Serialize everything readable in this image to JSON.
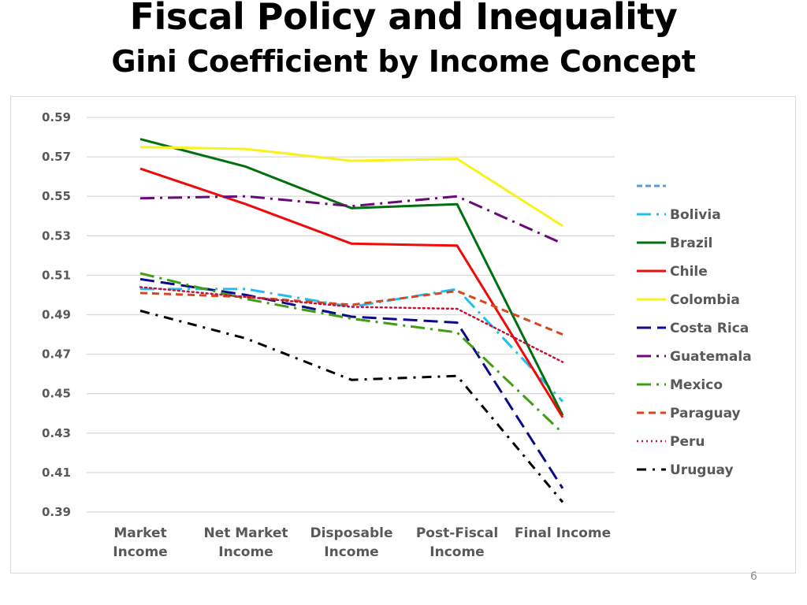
{
  "slide": {
    "title": "Fiscal Policy and Inequality",
    "subtitle": "Gini Coefficient by Income Concept",
    "page_number": "6"
  },
  "chart_data": {
    "type": "line",
    "title": "Gini Coefficient by Income Concept",
    "xlabel": "",
    "ylabel": "",
    "categories": [
      "Market Income",
      "Net Market Income",
      "Disposable Income",
      "Post-Fiscal Income",
      "Final Income"
    ],
    "category_lines": [
      [
        "Market",
        "Income"
      ],
      [
        "Net Market",
        "Income"
      ],
      [
        "Disposable",
        "Income"
      ],
      [
        "Post-Fiscal",
        "Income"
      ],
      [
        "Final Income"
      ]
    ],
    "ylim": [
      0.39,
      0.59
    ],
    "yticks": [
      "0.59",
      "0.57",
      "0.55",
      "0.53",
      "0.51",
      "0.49",
      "0.47",
      "0.45",
      "0.43",
      "0.41",
      "0.39"
    ],
    "ytick_values": [
      0.59,
      0.57,
      0.55,
      0.53,
      0.51,
      0.49,
      0.47,
      0.45,
      0.43,
      0.41,
      0.39
    ],
    "grid": true,
    "legend_position": "right",
    "legend_blank_entry": {
      "name": "",
      "color": "#5b9bd5",
      "dash": "short-dash"
    },
    "series": [
      {
        "name": "Bolivia",
        "color": "#1fbff0",
        "dash": "long-dash-dot",
        "values": [
          0.503,
          0.503,
          0.494,
          0.503,
          0.446
        ]
      },
      {
        "name": "Brazil",
        "color": "#00700f",
        "dash": "solid",
        "values": [
          0.579,
          0.565,
          0.544,
          0.546,
          0.439
        ]
      },
      {
        "name": "Chile",
        "color": "#f00a0a",
        "dash": "solid",
        "values": [
          0.564,
          0.546,
          0.526,
          0.525,
          0.438
        ]
      },
      {
        "name": "Colombia",
        "color": "#f8f21c",
        "dash": "solid",
        "values": [
          0.575,
          0.574,
          0.568,
          0.569,
          0.535
        ]
      },
      {
        "name": "Costa Rica",
        "color": "#0c0a8a",
        "dash": "long-dash",
        "values": [
          0.508,
          0.5,
          0.489,
          0.486,
          0.402
        ]
      },
      {
        "name": "Guatemala",
        "color": "#6a0a78",
        "dash": "long-dash-dot",
        "values": [
          0.549,
          0.55,
          0.545,
          0.55,
          0.526
        ]
      },
      {
        "name": "Mexico",
        "color": "#3f9e12",
        "dash": "long-dash-dot",
        "values": [
          0.511,
          0.498,
          0.488,
          0.481,
          0.43
        ]
      },
      {
        "name": "Paraguay",
        "color": "#d9461c",
        "dash": "dash",
        "values": [
          0.501,
          0.499,
          0.495,
          0.502,
          0.48
        ]
      },
      {
        "name": "Peru",
        "color": "#c0143c",
        "dash": "dot",
        "values": [
          0.504,
          0.499,
          0.494,
          0.493,
          0.466
        ]
      },
      {
        "name": "Uruguay",
        "color": "#000000",
        "dash": "dash-dot",
        "values": [
          0.492,
          0.478,
          0.457,
          0.459,
          0.395
        ]
      }
    ]
  }
}
